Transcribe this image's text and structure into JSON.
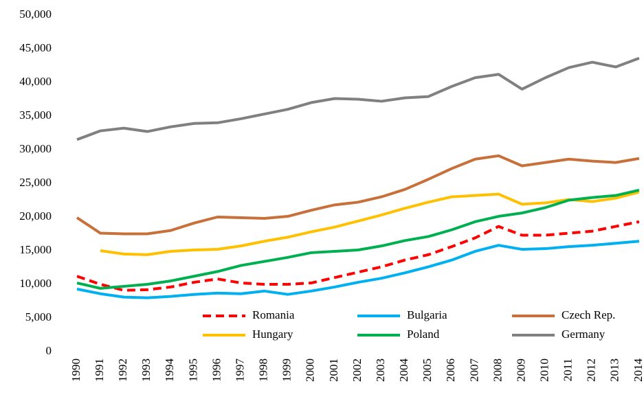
{
  "chart_data": {
    "type": "line",
    "categories": [
      "1990",
      "1991",
      "1992",
      "1993",
      "1994",
      "1995",
      "1996",
      "1997",
      "1998",
      "1999",
      "2000",
      "2001",
      "2002",
      "2003",
      "2004",
      "2005",
      "2006",
      "2007",
      "2008",
      "2009",
      "2010",
      "2011",
      "2012",
      "2013",
      "2014"
    ],
    "series": [
      {
        "name": "Romania",
        "color": "#ff0000",
        "dashed": true,
        "values": [
          11200,
          10000,
          9100,
          9200,
          9600,
          10300,
          10800,
          10200,
          10000,
          10000,
          10200,
          11000,
          11800,
          12600,
          13600,
          14400,
          15600,
          16900,
          18600,
          17300,
          17300,
          17600,
          17900,
          18600,
          19300
        ]
      },
      {
        "name": "Bulgaria",
        "color": "#00b0f0",
        "values": [
          9300,
          8600,
          8100,
          8000,
          8200,
          8500,
          8700,
          8600,
          9000,
          8500,
          9000,
          9600,
          10300,
          10900,
          11700,
          12600,
          13600,
          14900,
          15800,
          15200,
          15300,
          15600,
          15800,
          16100,
          16400
        ]
      },
      {
        "name": "Czech Rep.",
        "color": "#c8703a",
        "values": [
          19900,
          17600,
          17500,
          17500,
          18000,
          19100,
          20000,
          19900,
          19800,
          20100,
          21000,
          21800,
          22200,
          23000,
          24100,
          25600,
          27200,
          28600,
          29100,
          27600,
          28100,
          28600,
          28300,
          28100,
          28700
        ]
      },
      {
        "name": "Hungary",
        "color": "#ffc000",
        "values": [
          null,
          15000,
          14500,
          14400,
          14900,
          15100,
          15200,
          15700,
          16400,
          17000,
          17800,
          18500,
          19400,
          20300,
          21300,
          22200,
          23000,
          23200,
          23400,
          21900,
          22100,
          22600,
          22300,
          22800,
          23700
        ]
      },
      {
        "name": "Poland",
        "color": "#00b050",
        "values": [
          10200,
          9400,
          9700,
          10000,
          10500,
          11200,
          11900,
          12800,
          13400,
          14000,
          14700,
          14900,
          15100,
          15700,
          16500,
          17100,
          18100,
          19300,
          20100,
          20600,
          21400,
          22500,
          22900,
          23200,
          24000
        ]
      },
      {
        "name": "Germany",
        "color": "#808080",
        "values": [
          31500,
          32800,
          33200,
          32700,
          33400,
          33900,
          34000,
          34600,
          35300,
          36000,
          37000,
          37600,
          37500,
          37200,
          37700,
          37900,
          39400,
          40700,
          41200,
          39000,
          40700,
          42200,
          43000,
          42300,
          43600
        ]
      }
    ],
    "ylim": [
      0,
      50000
    ],
    "yticks": [
      0,
      {
        "value": 5000,
        "label": "5,000"
      },
      {
        "value": 10000,
        "label": "10,000"
      },
      {
        "value": 15000,
        "label": "15,000"
      },
      {
        "value": 20000,
        "label": "20,000"
      },
      {
        "value": 25000,
        "label": "25,000"
      },
      {
        "value": 30000,
        "label": "30,000"
      },
      {
        "value": 35000,
        "label": "35,000"
      },
      {
        "value": 40000,
        "label": "40,000"
      },
      {
        "value": 45000,
        "label": "45,000"
      },
      {
        "value": 50000,
        "label": "50,000"
      }
    ],
    "grid": false,
    "legend_position": "lower right"
  }
}
